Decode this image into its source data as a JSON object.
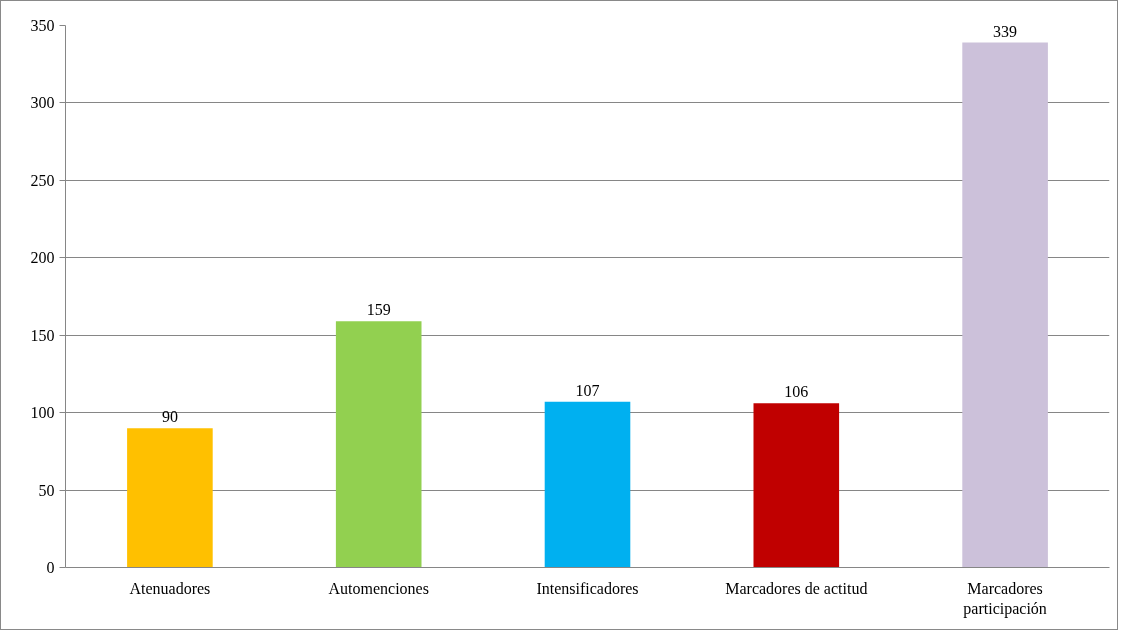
{
  "chart_data": {
    "type": "bar",
    "categories": [
      "Atenuadores",
      "Automenciones",
      "Intensificadores",
      "Marcadores de actitud",
      "Marcadores participación"
    ],
    "values": [
      90,
      159,
      107,
      106,
      339
    ],
    "colors": [
      "#ffc000",
      "#92d050",
      "#00b0f0",
      "#c00000",
      "#ccc1da"
    ],
    "ylim": [
      0,
      350
    ],
    "yticks": [
      0,
      50,
      100,
      150,
      200,
      250,
      300,
      350
    ],
    "grid": "y",
    "data_labels": true
  }
}
